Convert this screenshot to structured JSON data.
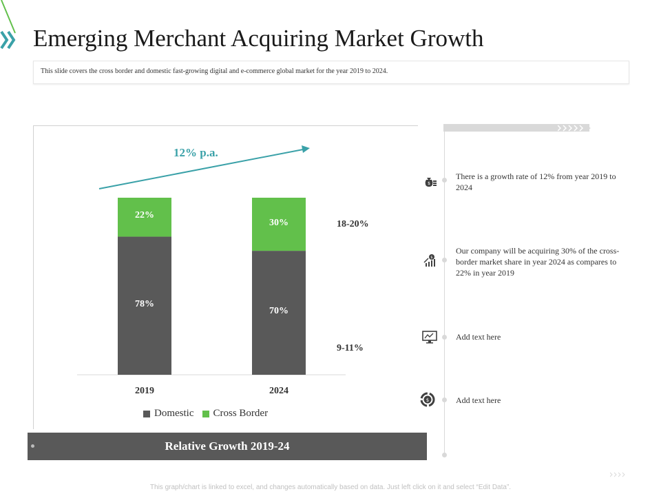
{
  "header": {
    "title": "Emerging Merchant Acquiring Market Growth",
    "subtitle": "This slide covers the cross border and domestic fast-growing digital and e-commerce global market for the year 2019 to 2024."
  },
  "chart_data": {
    "type": "bar",
    "stacked": true,
    "categories": [
      "2019",
      "2024"
    ],
    "series": [
      {
        "name": "Domestic",
        "values": [
          78,
          70
        ],
        "labels": [
          "78%",
          "70%"
        ],
        "color": "#595959"
      },
      {
        "name": "Cross Border",
        "values": [
          22,
          30
        ],
        "labels": [
          "22%",
          "30%"
        ],
        "color": "#62c04b"
      }
    ],
    "ylim": [
      0,
      100
    ],
    "annotations": {
      "growth": "12% p.a.",
      "cross_border_growth": "18-20%",
      "domestic_growth": "9-11%"
    },
    "legend_position": "bottom",
    "caption": "Relative Growth 2019-24"
  },
  "colors": {
    "domestic": "#595959",
    "cross_border": "#62c04b",
    "accent": "#3aa1a8",
    "chevron_green": "#62c04b"
  },
  "points": [
    {
      "icon": "money-bag-icon",
      "text": "There is a growth rate of 12% from year 2019 to 2024"
    },
    {
      "icon": "growth-chart-icon",
      "text": "Our company will be acquiring 30% of the cross-border market share in year 2024 as compares to 22% in year 2019"
    },
    {
      "icon": "monitor-chart-icon",
      "text": "Add text here"
    },
    {
      "icon": "dollar-cycle-icon",
      "text": "Add text here"
    }
  ],
  "footnote": "This graph/chart is linked to excel, and changes automatically based on data. Just left click on it and select “Edit Data”."
}
